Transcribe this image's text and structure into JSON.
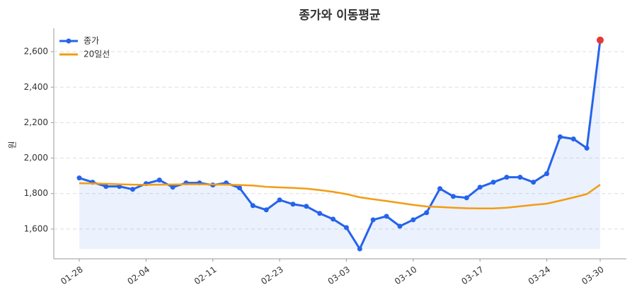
{
  "chart_data": {
    "type": "line",
    "title": "종가와 이동평균",
    "ylabel": "원",
    "categories": [
      "01-28",
      null,
      null,
      null,
      null,
      "02-04",
      null,
      null,
      null,
      null,
      "02-11",
      null,
      null,
      null,
      null,
      "02-23",
      null,
      null,
      null,
      null,
      "03-03",
      null,
      null,
      null,
      null,
      "03-10",
      null,
      null,
      null,
      null,
      "03-17",
      null,
      null,
      null,
      null,
      "03-24",
      null,
      null,
      null,
      "03-30"
    ],
    "series": [
      {
        "name": "종가",
        "color": "#2563eb",
        "marker": true,
        "fill": true,
        "values": [
          1888,
          1864,
          1840,
          1840,
          1824,
          1856,
          1876,
          1836,
          1860,
          1860,
          1848,
          1860,
          1832,
          1732,
          1708,
          1764,
          1740,
          1728,
          1688,
          1656,
          1608,
          1488,
          1652,
          1672,
          1616,
          1652,
          1692,
          1828,
          1784,
          1776,
          1836,
          1864,
          1892,
          1892,
          1864,
          1912,
          2120,
          2108,
          2056,
          2665
        ]
      },
      {
        "name": "20일선",
        "color": "#f39c12",
        "marker": false,
        "fill": false,
        "values": [
          1858,
          1857,
          1855,
          1852,
          1850,
          1849,
          1850,
          1851,
          1852,
          1852,
          1851,
          1850,
          1848,
          1845,
          1838,
          1835,
          1832,
          1828,
          1820,
          1810,
          1797,
          1779,
          1768,
          1758,
          1747,
          1736,
          1727,
          1724,
          1720,
          1717,
          1716,
          1716,
          1720,
          1728,
          1736,
          1743,
          1760,
          1778,
          1797,
          1850
        ]
      }
    ],
    "highlight_color": "#e53935",
    "ylim": [
      1432,
      2732
    ],
    "yticks": [
      {
        "value": 1600,
        "label": "1,600"
      },
      {
        "value": 1800,
        "label": "1,800"
      },
      {
        "value": 2000,
        "label": "2,000"
      },
      {
        "value": 2200,
        "label": "2,200"
      },
      {
        "value": 2400,
        "label": "2,400"
      },
      {
        "value": 2600,
        "label": "2,600"
      }
    ],
    "grid": true,
    "legend": "upper left"
  }
}
